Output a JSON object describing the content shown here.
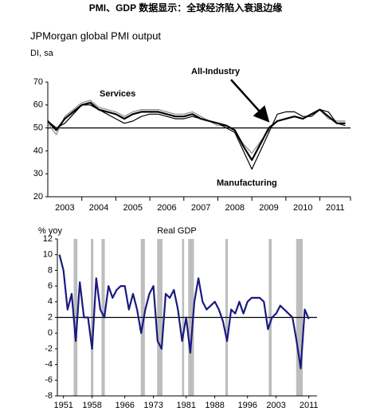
{
  "title": "PMI、GDP 数据显示：全球经济陷入衰退边缘",
  "chart_data": [
    {
      "type": "line",
      "title": "JPMorgan global PMI output",
      "subtitle": "DI, sa",
      "categories": [
        "2003",
        "2004",
        "2005",
        "2006",
        "2007",
        "2008",
        "2009",
        "2010",
        "2011"
      ],
      "xlim": [
        2003,
        2011.9
      ],
      "x": [
        2003,
        2003.25,
        2003.5,
        2003.75,
        2004,
        2004.25,
        2004.5,
        2004.75,
        2005,
        2005.25,
        2005.5,
        2005.75,
        2006,
        2006.25,
        2006.5,
        2006.75,
        2007,
        2007.25,
        2007.5,
        2007.75,
        2008,
        2008.25,
        2008.5,
        2008.75,
        2009,
        2009.25,
        2009.5,
        2009.75,
        2010,
        2010.25,
        2010.5,
        2010.75,
        2011,
        2011.25,
        2011.5,
        2011.75
      ],
      "ylim": [
        20,
        70
      ],
      "yticks": [
        20,
        30,
        40,
        50,
        60,
        70
      ],
      "reference_line": 50,
      "series": [
        {
          "name": "Services",
          "color": "#888888",
          "values": [
            52,
            47,
            55,
            58,
            61,
            62,
            59,
            58,
            57,
            55,
            57,
            58,
            58,
            58,
            57,
            56,
            56,
            57,
            55,
            53,
            51,
            51,
            49,
            43,
            39,
            44,
            49,
            53,
            54,
            55,
            54,
            56,
            58,
            54,
            53,
            53
          ]
        },
        {
          "name": "Manufacturing",
          "color": "#000000",
          "values": [
            53,
            50,
            52,
            56,
            60,
            60,
            58,
            56,
            54,
            52,
            53,
            55,
            56,
            56,
            55,
            54,
            54,
            55,
            54,
            53,
            52,
            50,
            48,
            40,
            32,
            40,
            48,
            56,
            57,
            57,
            55,
            55,
            58,
            57,
            52,
            51
          ]
        },
        {
          "name": "All-Industry",
          "color": "#000000",
          "values": [
            53,
            49,
            54,
            57,
            60,
            61,
            58,
            57,
            56,
            54,
            56,
            57,
            57,
            57,
            56,
            55,
            55,
            56,
            54,
            53,
            52,
            51,
            49,
            42,
            36,
            43,
            50,
            53,
            54,
            55,
            54,
            56,
            58,
            55,
            52,
            52
          ]
        }
      ],
      "annotations": [
        "Services",
        "All-Industry",
        "Manufacturing"
      ]
    },
    {
      "type": "line",
      "title": "Real GDP",
      "y_label": "% yoy",
      "xlim": [
        1949.5,
        2013
      ],
      "xticks": [
        1951,
        1958,
        1966,
        1973,
        1981,
        1988,
        1996,
        2003,
        2011
      ],
      "ylim": [
        -8,
        12
      ],
      "yticks": [
        -8,
        -6,
        -4,
        -2,
        0,
        2,
        4,
        6,
        8,
        10,
        12
      ],
      "reference_line": 2,
      "recessions": [
        [
          1953.5,
          1954.4
        ],
        [
          1957.7,
          1958.3
        ],
        [
          1960.3,
          1961.1
        ],
        [
          1969.9,
          1970.9
        ],
        [
          1973.9,
          1975.2
        ],
        [
          1980,
          1980.5
        ],
        [
          1981.5,
          1982.9
        ],
        [
          1990.6,
          1991.2
        ],
        [
          2001.2,
          2001.9
        ],
        [
          2007.9,
          2009.5
        ]
      ],
      "x": [
        1950,
        1951,
        1952,
        1953,
        1954,
        1955,
        1956,
        1957,
        1958,
        1959,
        1960,
        1961,
        1962,
        1963,
        1964,
        1965,
        1966,
        1967,
        1968,
        1969,
        1970,
        1971,
        1972,
        1973,
        1974,
        1975,
        1976,
        1977,
        1978,
        1979,
        1980,
        1981,
        1982,
        1983,
        1984,
        1985,
        1986,
        1987,
        1988,
        1989,
        1990,
        1991,
        1992,
        1993,
        1994,
        1995,
        1996,
        1997,
        1998,
        1999,
        2000,
        2001,
        2002,
        2003,
        2004,
        2005,
        2006,
        2007,
        2008,
        2009,
        2010,
        2011
      ],
      "series": [
        {
          "name": "Real GDP",
          "color": "#1a1a80",
          "values": [
            10,
            8,
            3,
            5,
            -1,
            6.5,
            2,
            2,
            -2,
            7,
            3,
            2,
            6,
            4.5,
            5.5,
            6,
            6,
            3,
            5,
            3,
            0,
            3,
            5,
            6,
            -1,
            -2,
            5,
            4.5,
            5.5,
            3,
            -1,
            2,
            -2.5,
            4,
            7,
            4,
            3,
            3.5,
            4,
            3,
            1.5,
            -1,
            3,
            2.5,
            4,
            2.5,
            4,
            4.5,
            4.5,
            4.5,
            4,
            0.5,
            2,
            2.5,
            3.5,
            3,
            2.5,
            2,
            -1,
            -4.5,
            3,
            1.8
          ]
        }
      ]
    }
  ]
}
